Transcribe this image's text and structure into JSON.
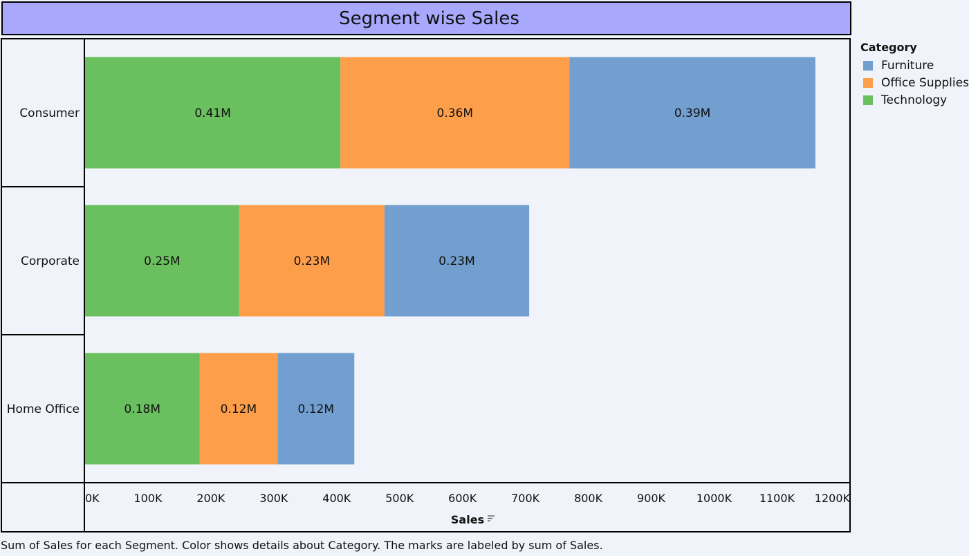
{
  "title": "Segment wise Sales",
  "caption": "Sum of Sales for each Segment.  Color shows details about Category.  The marks are labeled by sum of Sales.",
  "legend": {
    "title": "Category",
    "items": [
      {
        "label": "Furniture",
        "color": "#729fcf"
      },
      {
        "label": "Office Supplies",
        "color": "#fd9e4b"
      },
      {
        "label": "Technology",
        "color": "#6abf5e"
      }
    ]
  },
  "chart_data": {
    "type": "bar",
    "orientation": "horizontal",
    "stacked": true,
    "title": "Segment wise Sales",
    "xlabel": "Sales",
    "ylabel": "",
    "xlim": [
      0,
      1200000
    ],
    "x_ticks": [
      0,
      100000,
      200000,
      300000,
      400000,
      500000,
      600000,
      700000,
      800000,
      900000,
      1000000,
      1100000,
      1200000
    ],
    "x_tick_labels": [
      "0K",
      "100K",
      "200K",
      "300K",
      "400K",
      "500K",
      "600K",
      "700K",
      "800K",
      "900K",
      "1000K",
      "1100K",
      "1200K"
    ],
    "categories": [
      "Consumer",
      "Corporate",
      "Home Office"
    ],
    "series": [
      {
        "name": "Technology",
        "color": "#6abf5e",
        "values": [
          406000,
          245000,
          182000
        ],
        "labels": [
          "0.41M",
          "0.25M",
          "0.18M"
        ]
      },
      {
        "name": "Office Supplies",
        "color": "#fd9e4b",
        "values": [
          364000,
          231000,
          124000
        ],
        "labels": [
          "0.36M",
          "0.23M",
          "0.12M"
        ]
      },
      {
        "name": "Furniture",
        "color": "#729fcf",
        "values": [
          391000,
          230000,
          122000
        ],
        "labels": [
          "0.39M",
          "0.23M",
          "0.12M"
        ]
      }
    ],
    "legend_position": "right",
    "grid": false
  }
}
